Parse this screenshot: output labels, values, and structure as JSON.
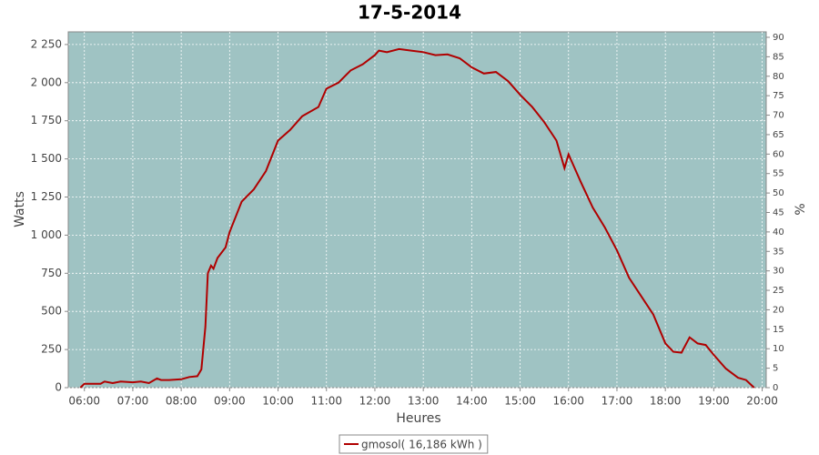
{
  "chart_data": {
    "type": "line",
    "title": "17-5-2014",
    "x_label": "Heures",
    "y_label": "Watts",
    "y2_label": "%",
    "x": [
      "05:55",
      "06:00",
      "06:10",
      "06:20",
      "06:25",
      "06:35",
      "06:45",
      "07:00",
      "07:10",
      "07:20",
      "07:30",
      "07:35",
      "07:45",
      "08:00",
      "08:10",
      "08:20",
      "08:25",
      "08:30",
      "08:33",
      "08:37",
      "08:40",
      "08:45",
      "08:55",
      "09:00",
      "09:15",
      "09:30",
      "09:45",
      "10:00",
      "10:15",
      "10:30",
      "10:50",
      "11:00",
      "11:15",
      "11:30",
      "11:45",
      "12:00",
      "12:05",
      "12:15",
      "12:30",
      "12:45",
      "13:00",
      "13:15",
      "13:30",
      "13:45",
      "14:00",
      "14:15",
      "14:30",
      "14:45",
      "15:00",
      "15:15",
      "15:30",
      "15:45",
      "15:55",
      "16:00",
      "16:15",
      "16:30",
      "16:45",
      "17:00",
      "17:15",
      "17:30",
      "17:45",
      "18:00",
      "18:10",
      "18:20",
      "18:30",
      "18:40",
      "18:50",
      "19:00",
      "19:15",
      "19:30",
      "19:40",
      "19:50"
    ],
    "series": [
      {
        "name": "gmosol( 16,186 kWh )",
        "color": "#b00000",
        "values": [
          0,
          25,
          25,
          25,
          40,
          30,
          40,
          35,
          40,
          30,
          60,
          50,
          50,
          55,
          70,
          75,
          120,
          400,
          750,
          800,
          780,
          850,
          920,
          1020,
          1220,
          1300,
          1420,
          1620,
          1690,
          1780,
          1840,
          1960,
          2000,
          2080,
          2120,
          2180,
          2210,
          2200,
          2220,
          2210,
          2200,
          2180,
          2185,
          2160,
          2100,
          2060,
          2070,
          2010,
          1920,
          1840,
          1740,
          1620,
          1440,
          1530,
          1350,
          1180,
          1050,
          900,
          720,
          600,
          480,
          290,
          235,
          230,
          330,
          290,
          280,
          215,
          125,
          65,
          50,
          0
        ]
      }
    ],
    "xlim": [
      "05:40",
      "20:05"
    ],
    "xticks": [
      "06:00",
      "07:00",
      "08:00",
      "09:00",
      "10:00",
      "11:00",
      "12:00",
      "13:00",
      "14:00",
      "15:00",
      "16:00",
      "17:00",
      "18:00",
      "19:00",
      "20:00"
    ],
    "ylim": [
      0,
      2333
    ],
    "yticks": [
      0,
      250,
      500,
      750,
      {
        "value": 1000,
        "label": "1 000"
      },
      {
        "value": 1250,
        "label": "1 250"
      },
      {
        "value": 1500,
        "label": "1 500"
      },
      {
        "value": 1750,
        "label": "1 750"
      },
      {
        "value": 2000,
        "label": "2 000"
      },
      {
        "value": 2250,
        "label": "2 250"
      }
    ],
    "y2lim": [
      0,
      91.4
    ],
    "y2ticks": [
      0,
      5,
      10,
      15,
      20,
      25,
      30,
      35,
      40,
      45,
      50,
      55,
      60,
      65,
      70,
      75,
      80,
      85,
      90
    ],
    "grid": true,
    "plot_background": "#9fc3c3",
    "legend": "bottom"
  }
}
